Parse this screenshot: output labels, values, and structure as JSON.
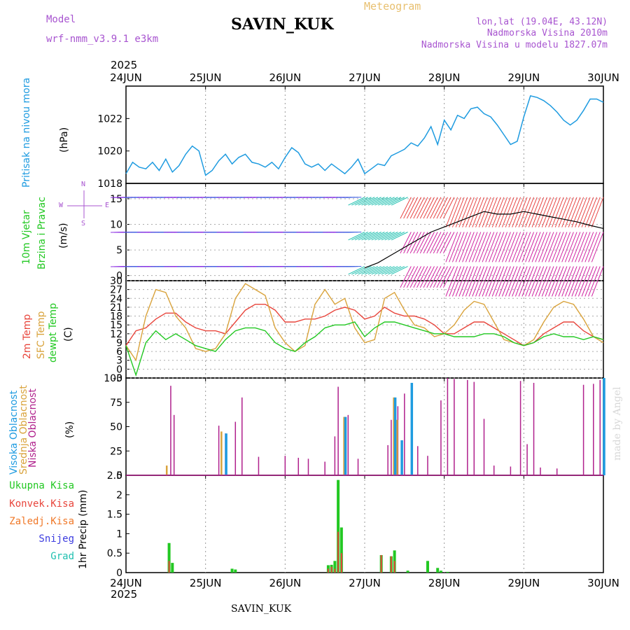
{
  "header": {
    "model_label": "Model",
    "model_name": "wrf-nmm_v3.9.1 e3km",
    "title": "SAVIN_KUK",
    "chart_kind": "Meteogram",
    "lonlat": "lon,lat (19.04E, 43.12N)",
    "elevation": "Nadmorska Visina 2010m",
    "model_elevation": "Nadmorska Visina u modelu 1827.07m",
    "year_top": "2025",
    "year_bottom": "2025",
    "footer_station": "SAVIN_KUK",
    "watermark": "made by Angel"
  },
  "colors": {
    "pressure": "#1e9be0",
    "temp2m": "#e8453c",
    "sfc_temp": "#d9a33c",
    "dewpoint": "#22c822",
    "high_cloud": "#1e9be0",
    "mid_cloud": "#d9a33c",
    "low_cloud": "#b0208c",
    "wind_purple": "#8a2be2",
    "wind_blue": "#4060e0",
    "wind_cyan": "#20c0b0",
    "wind_magenta": "#d020a0",
    "wind_red": "#e84040",
    "model_color": "#a855d0",
    "precip_total": "#22c822",
    "precip_conv": "#e8453c",
    "precip_frozen": "#f07828",
    "snow": "#3c3ce0",
    "hail": "#20c0b0"
  },
  "panel_labels": {
    "pressure": [
      "Pritisak na nivou mora",
      "(hPa)"
    ],
    "wind": [
      "10m Vjetar",
      "Brzina i Pravac",
      "(m/s)"
    ],
    "temp": [
      "2m Temp",
      "SFC Temp",
      "dewpt Temp",
      "(C)"
    ],
    "cloud": [
      "Visoka Oblacnost",
      "Srednja Oblacnost",
      "Niska Oblacnost",
      "(%)"
    ],
    "precip_y": "1hr Precip (mm)",
    "precip_legend": [
      "Ukupna Kisa",
      "Konvek.Kisa",
      "Zaledj.Kisa",
      "Snijeg",
      "Grad"
    ]
  },
  "compass": {
    "n": "N",
    "s": "S",
    "e": "E",
    "w": "W"
  },
  "chart_data": {
    "type": "line",
    "x_days": [
      "24JUN",
      "25JUN",
      "26JUN",
      "27JUN",
      "28JUN",
      "29JUN",
      "30JUN"
    ],
    "x_range_hours": [
      0,
      144
    ],
    "panels": {
      "pressure": {
        "ylim": [
          1018,
          1024
        ],
        "yticks": [
          "1018",
          "1020",
          "1022"
        ],
        "hours": [
          0,
          2,
          4,
          6,
          8,
          10,
          12,
          14,
          16,
          18,
          20,
          22,
          24,
          26,
          28,
          30,
          32,
          34,
          36,
          38,
          40,
          42,
          44,
          46,
          48,
          50,
          52,
          54,
          56,
          58,
          60,
          62,
          64,
          66,
          68,
          70,
          72,
          74,
          76,
          78,
          80,
          82,
          84,
          86,
          88,
          90,
          92,
          94,
          96,
          98,
          100,
          102,
          104,
          106,
          108,
          110,
          112,
          114,
          116,
          118,
          120,
          122,
          124,
          126,
          128,
          130,
          132,
          134,
          136,
          138,
          140,
          142,
          144
        ],
        "values": [
          1018.6,
          1019.3,
          1019.0,
          1018.9,
          1019.3,
          1018.8,
          1019.5,
          1018.7,
          1019.1,
          1019.8,
          1020.3,
          1020.0,
          1018.5,
          1018.8,
          1019.4,
          1019.8,
          1019.2,
          1019.6,
          1019.8,
          1019.3,
          1019.2,
          1019.0,
          1019.3,
          1018.9,
          1019.6,
          1020.2,
          1019.9,
          1019.2,
          1019.0,
          1019.2,
          1018.8,
          1019.2,
          1018.9,
          1018.6,
          1019.0,
          1019.5,
          1018.6,
          1018.9,
          1019.2,
          1019.1,
          1019.7,
          1019.9,
          1020.1,
          1020.5,
          1020.3,
          1020.8,
          1021.5,
          1020.4,
          1021.9,
          1021.3,
          1022.2,
          1022.0,
          1022.6,
          1022.7,
          1022.3,
          1022.1,
          1021.6,
          1021.0,
          1020.4,
          1020.6,
          1022.1,
          1023.4,
          1023.3,
          1023.1,
          1022.8,
          1022.4,
          1021.9,
          1021.6,
          1021.9,
          1022.5,
          1023.2,
          1023.2,
          1023.0
        ]
      },
      "wind": {
        "ylim": [
          -1,
          18
        ],
        "yticks": [
          "0",
          "5",
          "10",
          "15"
        ],
        "model_wind_hours": [
          72,
          76,
          80,
          84,
          88,
          92,
          96,
          100,
          104,
          108,
          112,
          116,
          120,
          124,
          128,
          132,
          136,
          140,
          144
        ],
        "model_wind_speed": [
          1.5,
          2.5,
          4.0,
          5.5,
          7.0,
          8.5,
          9.5,
          10.5,
          11.5,
          12.5,
          12.0,
          12.0,
          12.5,
          12.0,
          11.5,
          11.0,
          10.5,
          9.8,
          9.2
        ]
      },
      "temperature": {
        "ylim": [
          -3,
          30
        ],
        "yticks": [
          "-3",
          "0",
          "3",
          "6",
          "9",
          "12",
          "15",
          "18",
          "21",
          "24",
          "27",
          "30"
        ],
        "hours": [
          0,
          3,
          6,
          9,
          12,
          15,
          18,
          21,
          24,
          27,
          30,
          33,
          36,
          39,
          42,
          45,
          48,
          51,
          54,
          57,
          60,
          63,
          66,
          69,
          72,
          75,
          78,
          81,
          84,
          87,
          90,
          93,
          96,
          99,
          102,
          105,
          108,
          111,
          114,
          117,
          120,
          123,
          126,
          129,
          132,
          135,
          138,
          141,
          144
        ],
        "temp2m": [
          8,
          13,
          14,
          17,
          19,
          19,
          16,
          14,
          13,
          13,
          12,
          16,
          20,
          22,
          22,
          20,
          16,
          16,
          17,
          17,
          18,
          20,
          21,
          20,
          17,
          18,
          21,
          19,
          18,
          18,
          17,
          15,
          12,
          12,
          14,
          16,
          16,
          14,
          12,
          10,
          8,
          9,
          12,
          14,
          16,
          16,
          13,
          11,
          10
        ],
        "sfc_temp": [
          8,
          3,
          18,
          27,
          26,
          18,
          14,
          7,
          6,
          7,
          12,
          24,
          29,
          27,
          25,
          14,
          9,
          6,
          8,
          22,
          27,
          22,
          24,
          14,
          9,
          10,
          24,
          26,
          20,
          15,
          14,
          11,
          12,
          15,
          20,
          23,
          22,
          16,
          10,
          9,
          8,
          10,
          16,
          21,
          23,
          22,
          17,
          11,
          9
        ],
        "dewpoint": [
          8,
          -2,
          9,
          13,
          10,
          12,
          10,
          8,
          7,
          6,
          10,
          13,
          14,
          14,
          13,
          9,
          7,
          6,
          9,
          11,
          14,
          15,
          15,
          16,
          11,
          14,
          16,
          16,
          15,
          14,
          13,
          12,
          12,
          11,
          11,
          11,
          12,
          12,
          11,
          9,
          8,
          9,
          11,
          12,
          11,
          11,
          10,
          11,
          10
        ]
      },
      "cloud": {
        "ylim": [
          0,
          100
        ],
        "yticks": [
          "0",
          "25",
          "50",
          "75",
          "100"
        ],
        "low_bars": [
          [
            13.5,
            92
          ],
          [
            14.5,
            62
          ],
          [
            28,
            51
          ],
          [
            30,
            43
          ],
          [
            33,
            55
          ],
          [
            35,
            80
          ],
          [
            40,
            19
          ],
          [
            48,
            20
          ],
          [
            52,
            18
          ],
          [
            55,
            17
          ],
          [
            60,
            14
          ],
          [
            63,
            40
          ],
          [
            64,
            91
          ],
          [
            66,
            60
          ],
          [
            67,
            62
          ],
          [
            70,
            17
          ],
          [
            79,
            31
          ],
          [
            80,
            57
          ],
          [
            81,
            79
          ],
          [
            82,
            71
          ],
          [
            84,
            84
          ],
          [
            88,
            30
          ],
          [
            91,
            20
          ],
          [
            95,
            77
          ],
          [
            97,
            100
          ],
          [
            99,
            99
          ],
          [
            103,
            98
          ],
          [
            105,
            96
          ],
          [
            108,
            58
          ],
          [
            111,
            10
          ],
          [
            116,
            9
          ],
          [
            119,
            97
          ],
          [
            121,
            32
          ],
          [
            123,
            95
          ],
          [
            125,
            8
          ],
          [
            130,
            7
          ],
          [
            138,
            93
          ],
          [
            141,
            94
          ],
          [
            143,
            98
          ]
        ],
        "mid_bars": [
          [
            12.5,
            10
          ],
          [
            29,
            45
          ],
          [
            66,
            60
          ],
          [
            81,
            80
          ],
          [
            82,
            57
          ]
        ],
        "high_bars": [
          [
            30,
            43
          ],
          [
            66,
            60
          ],
          [
            81,
            80
          ],
          [
            83,
            36
          ],
          [
            86,
            95
          ],
          [
            144,
            100
          ]
        ]
      },
      "precip": {
        "ylim": [
          0,
          2.5
        ],
        "yticks": [
          "0",
          "0.5",
          "1",
          "1.5",
          "2",
          "2.5"
        ],
        "total_bars": [
          [
            13,
            0.76
          ],
          [
            14,
            0.25
          ],
          [
            32,
            0.1
          ],
          [
            33,
            0.08
          ],
          [
            61,
            0.19
          ],
          [
            62,
            0.2
          ],
          [
            63,
            0.3
          ],
          [
            64,
            2.38
          ],
          [
            65,
            1.16
          ],
          [
            77,
            0.45
          ],
          [
            80,
            0.42
          ],
          [
            81,
            0.57
          ],
          [
            85,
            0.05
          ],
          [
            91,
            0.3
          ],
          [
            94,
            0.12
          ],
          [
            95,
            0.05
          ],
          [
            97,
            0.02
          ]
        ],
        "conv_bars": [
          [
            13,
            0.3
          ],
          [
            61,
            0.1
          ],
          [
            62,
            0.15
          ],
          [
            63,
            0.1
          ],
          [
            64,
            1.05
          ],
          [
            65,
            0.5
          ],
          [
            77,
            0.45
          ],
          [
            80,
            0.42
          ],
          [
            81,
            0.3
          ]
        ]
      }
    }
  }
}
